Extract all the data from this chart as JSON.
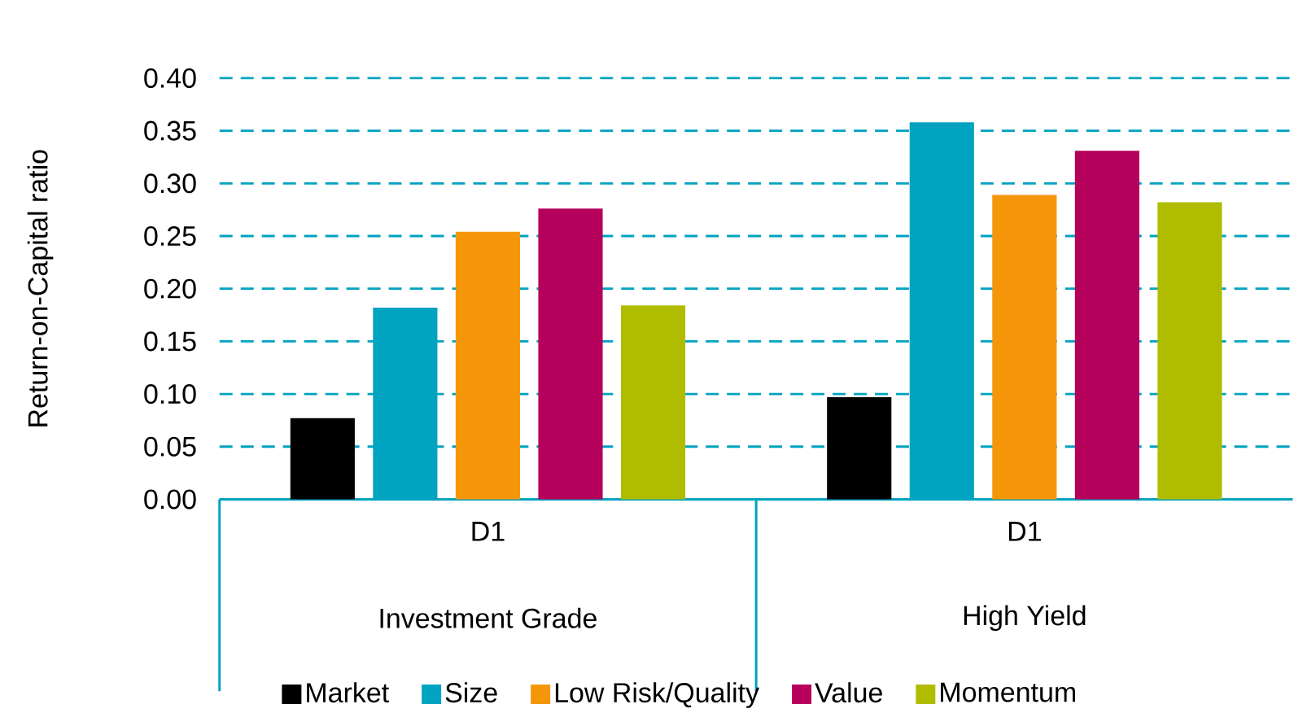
{
  "chart_data": {
    "type": "bar",
    "ylabel": "Return-on-Capital ratio",
    "categories": [
      "D1",
      "D1"
    ],
    "annotations": [
      "Investment Grade",
      "High Yield"
    ],
    "series": [
      {
        "name": "Market",
        "color": "#000000",
        "values": [
          0.077,
          0.097
        ]
      },
      {
        "name": "Size",
        "color": "#00a3c0",
        "values": [
          0.182,
          0.358
        ]
      },
      {
        "name": "Low Risk/Quality",
        "color": "#f5960a",
        "values": [
          0.254,
          0.289
        ]
      },
      {
        "name": "Value",
        "color": "#b5005c",
        "values": [
          0.276,
          0.331
        ]
      },
      {
        "name": "Momentum",
        "color": "#afbc00",
        "values": [
          0.184,
          0.282
        ]
      }
    ],
    "ylim": [
      0,
      0.4
    ],
    "yticks": [
      {
        "value": 0,
        "label": "0.00"
      },
      {
        "value": 0.05,
        "label": "0.05"
      },
      {
        "value": 0.1,
        "label": "0.10"
      },
      {
        "value": 0.15,
        "label": "0.15"
      },
      {
        "value": 0.2,
        "label": "0.20"
      },
      {
        "value": 0.25,
        "label": "0.25"
      },
      {
        "value": 0.3,
        "label": "0.30"
      },
      {
        "value": 0.35,
        "label": "0.35"
      },
      {
        "value": 0.4,
        "label": "0.40"
      }
    ],
    "grid": "y",
    "legend": "bottom"
  }
}
